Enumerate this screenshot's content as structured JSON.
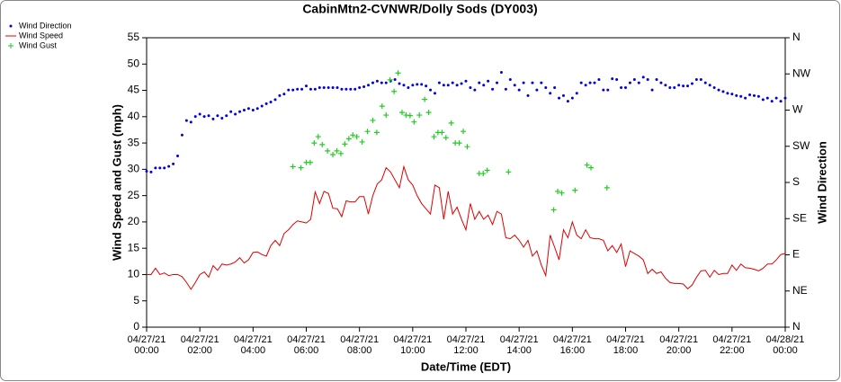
{
  "chart_data": {
    "type": "wind",
    "title": "CabinMtn2-CVNWR/Dolly Sods (DY003)",
    "x_label": "Date/Time (EDT)",
    "y_label": "Wind Speed and Gust (mph)",
    "y2_label": "Wind Direction",
    "xlim": [
      0,
      1440
    ],
    "xticks": [
      {
        "value": 0,
        "label": [
          "04/27/21",
          "00:00"
        ]
      },
      {
        "value": 120,
        "label": [
          "04/27/21",
          "02:00"
        ]
      },
      {
        "value": 240,
        "label": [
          "04/27/21",
          "04:00"
        ]
      },
      {
        "value": 360,
        "label": [
          "04/27/21",
          "06:00"
        ]
      },
      {
        "value": 480,
        "label": [
          "04/27/21",
          "08:00"
        ]
      },
      {
        "value": 600,
        "label": [
          "04/27/21",
          "10:00"
        ]
      },
      {
        "value": 720,
        "label": [
          "04/27/21",
          "12:00"
        ]
      },
      {
        "value": 840,
        "label": [
          "04/27/21",
          "14:00"
        ]
      },
      {
        "value": 960,
        "label": [
          "04/27/21",
          "16:00"
        ]
      },
      {
        "value": 1080,
        "label": [
          "04/27/21",
          "18:00"
        ]
      },
      {
        "value": 1200,
        "label": [
          "04/27/21",
          "20:00"
        ]
      },
      {
        "value": 1320,
        "label": [
          "04/27/21",
          "22:00"
        ]
      },
      {
        "value": 1440,
        "label": [
          "04/28/21",
          "00:00"
        ]
      }
    ],
    "ylim": [
      0,
      55
    ],
    "yticks": [
      0,
      5,
      10,
      15,
      20,
      25,
      30,
      35,
      40,
      45,
      50,
      55
    ],
    "y2lim": [
      0,
      360
    ],
    "y2ticks": [
      {
        "value": 0,
        "label": "N"
      },
      {
        "value": 45,
        "label": "NE"
      },
      {
        "value": 90,
        "label": "E"
      },
      {
        "value": 135,
        "label": "SE"
      },
      {
        "value": 180,
        "label": "S"
      },
      {
        "value": 225,
        "label": "SW"
      },
      {
        "value": 270,
        "label": "W"
      },
      {
        "value": 315,
        "label": "NW"
      },
      {
        "value": 360,
        "label": "N"
      }
    ],
    "legend": "outside-top-left",
    "grid": false,
    "series": [
      {
        "name": "Wind Direction",
        "color": "#0000dd",
        "marker": "dot",
        "axis": "y2",
        "x": [
          0,
          10,
          20,
          30,
          40,
          50,
          60,
          70,
          80,
          90,
          100,
          110,
          120,
          130,
          140,
          150,
          160,
          170,
          180,
          190,
          200,
          210,
          220,
          230,
          240,
          250,
          260,
          270,
          280,
          290,
          300,
          310,
          320,
          330,
          340,
          350,
          360,
          370,
          380,
          390,
          400,
          410,
          420,
          430,
          440,
          450,
          460,
          470,
          480,
          490,
          500,
          510,
          520,
          530,
          540,
          550,
          560,
          570,
          580,
          590,
          600,
          610,
          620,
          630,
          640,
          650,
          660,
          670,
          680,
          690,
          700,
          710,
          720,
          730,
          740,
          750,
          760,
          770,
          780,
          790,
          800,
          810,
          820,
          830,
          840,
          850,
          860,
          870,
          880,
          890,
          900,
          910,
          920,
          930,
          940,
          950,
          960,
          970,
          980,
          990,
          1000,
          1010,
          1020,
          1030,
          1040,
          1050,
          1060,
          1070,
          1080,
          1090,
          1100,
          1110,
          1120,
          1130,
          1140,
          1150,
          1160,
          1170,
          1180,
          1190,
          1200,
          1210,
          1220,
          1230,
          1240,
          1250,
          1260,
          1270,
          1280,
          1290,
          1300,
          1310,
          1320,
          1330,
          1340,
          1350,
          1360,
          1370,
          1380,
          1390,
          1400,
          1410,
          1420,
          1430,
          1440
        ],
        "values": [
          194,
          193,
          198,
          198,
          198,
          200,
          203,
          213,
          239,
          257,
          255,
          262,
          265,
          262,
          263,
          259,
          263,
          260,
          263,
          268,
          265,
          268,
          270,
          272,
          270,
          272,
          275,
          278,
          280,
          283,
          288,
          290,
          295,
          295,
          296,
          296,
          300,
          296,
          296,
          298,
          298,
          298,
          298,
          298,
          296,
          296,
          296,
          296,
          298,
          299,
          301,
          304,
          306,
          304,
          304,
          306,
          308,
          303,
          301,
          298,
          301,
          302,
          302,
          300,
          295,
          291,
          304,
          301,
          301,
          304,
          301,
          303,
          306,
          298,
          295,
          304,
          301,
          306,
          296,
          304,
          317,
          296,
          308,
          301,
          295,
          304,
          288,
          304,
          295,
          304,
          298,
          291,
          298,
          285,
          288,
          281,
          285,
          291,
          304,
          301,
          304,
          304,
          308,
          295,
          295,
          309,
          308,
          298,
          298,
          304,
          308,
          304,
          311,
          308,
          295,
          308,
          304,
          301,
          298,
          298,
          301,
          300,
          300,
          303,
          308,
          308,
          304,
          301,
          298,
          295,
          293,
          291,
          290,
          288,
          287,
          285,
          289,
          288,
          287,
          283,
          285,
          281,
          285,
          281,
          285
        ]
      },
      {
        "name": "Wind Speed",
        "color": "#e00000",
        "marker": "line",
        "axis": "y",
        "x": [
          0,
          10,
          20,
          30,
          40,
          50,
          60,
          70,
          80,
          90,
          100,
          110,
          120,
          130,
          140,
          150,
          160,
          170,
          180,
          190,
          200,
          210,
          220,
          230,
          240,
          250,
          260,
          270,
          280,
          290,
          300,
          310,
          320,
          330,
          340,
          350,
          360,
          370,
          380,
          390,
          400,
          410,
          420,
          430,
          440,
          450,
          460,
          470,
          480,
          490,
          500,
          510,
          520,
          530,
          540,
          550,
          560,
          570,
          580,
          590,
          600,
          610,
          620,
          630,
          640,
          650,
          660,
          670,
          680,
          690,
          700,
          710,
          720,
          730,
          740,
          750,
          760,
          770,
          780,
          790,
          800,
          810,
          820,
          830,
          840,
          850,
          860,
          870,
          880,
          890,
          900,
          910,
          920,
          930,
          940,
          950,
          960,
          970,
          980,
          990,
          1000,
          1010,
          1020,
          1030,
          1040,
          1050,
          1060,
          1070,
          1080,
          1090,
          1100,
          1110,
          1120,
          1130,
          1140,
          1150,
          1160,
          1170,
          1180,
          1190,
          1200,
          1210,
          1220,
          1230,
          1240,
          1250,
          1260,
          1270,
          1280,
          1290,
          1300,
          1310,
          1320,
          1330,
          1340,
          1350,
          1360,
          1370,
          1380,
          1390,
          1400,
          1410,
          1420,
          1430,
          1440
        ],
        "values": [
          10,
          10,
          11.2,
          10,
          10.3,
          9.8,
          10,
          10,
          9.6,
          8.5,
          7.2,
          8.5,
          10,
          10.5,
          9.5,
          11.7,
          10.8,
          12,
          11.8,
          12,
          12.4,
          13.2,
          12.2,
          12.8,
          14.2,
          14.3,
          13.8,
          13.5,
          15.5,
          16.5,
          15.5,
          17.8,
          18.5,
          19.5,
          20.2,
          20,
          19.8,
          20.5,
          25.7,
          23.5,
          25.8,
          25.4,
          22.6,
          22.5,
          21,
          24,
          23.8,
          23.8,
          24.8,
          24.8,
          21.5,
          25,
          27.2,
          28,
          30.3,
          29.5,
          28,
          26.5,
          30.5,
          28,
          27,
          25,
          23.5,
          22.5,
          21.5,
          27,
          26.5,
          20.5,
          25.8,
          21.5,
          22.8,
          20.5,
          18.5,
          23.5,
          20.5,
          22,
          20.5,
          21.3,
          19.5,
          22,
          21.5,
          17,
          16.8,
          17.5,
          16.5,
          15.2,
          16.5,
          13.5,
          14.5,
          11.8,
          9.8,
          17.5,
          15.2,
          12.8,
          18.5,
          17,
          20,
          17.5,
          16.8,
          18.5,
          17,
          16.8,
          16.8,
          16.5,
          14.5,
          15.5,
          14.2,
          15.8,
          11.5,
          14.5,
          14,
          13.5,
          12.8,
          10.2,
          11,
          10.2,
          10.5,
          9.3,
          8.5,
          8.3,
          8.3,
          8.2,
          7.3,
          8,
          9.5,
          10.7,
          10.8,
          9.5,
          10.8,
          10,
          10.2,
          10.2,
          11.8,
          10.8,
          12,
          11.3,
          11.2,
          11,
          10.7,
          11.2,
          12,
          12,
          12.8,
          13.8,
          14
        ]
      },
      {
        "name": "Wind Gust",
        "color": "#22cc22",
        "marker": "plus",
        "axis": "y",
        "x": [
          330,
          348,
          360,
          369,
          378,
          387,
          396,
          408,
          420,
          429,
          438,
          447,
          456,
          465,
          474,
          486,
          498,
          510,
          519,
          531,
          540,
          549,
          558,
          567,
          576,
          585,
          594,
          603,
          615,
          627,
          636,
          648,
          657,
          666,
          675,
          687,
          696,
          705,
          714,
          723,
          750,
          759,
          768,
          816,
          918,
          927,
          936,
          966,
          993,
          1002,
          1038
        ],
        "values": [
          30.5,
          30.3,
          31.3,
          31.3,
          35,
          36.2,
          34.7,
          33.5,
          32.8,
          33.5,
          33,
          34.8,
          35.8,
          36.5,
          36.2,
          35.2,
          37.2,
          39.3,
          37,
          42,
          40.3,
          47,
          44.8,
          48.3,
          40.8,
          40.3,
          40.2,
          39,
          40.3,
          43.3,
          40.8,
          36.2,
          37,
          37,
          36,
          38.8,
          35,
          35,
          37.2,
          34.3,
          29.2,
          29.2,
          29.8,
          29.5,
          22.3,
          25.8,
          25.5,
          26,
          30.8,
          30.3,
          26.5
        ]
      }
    ]
  }
}
